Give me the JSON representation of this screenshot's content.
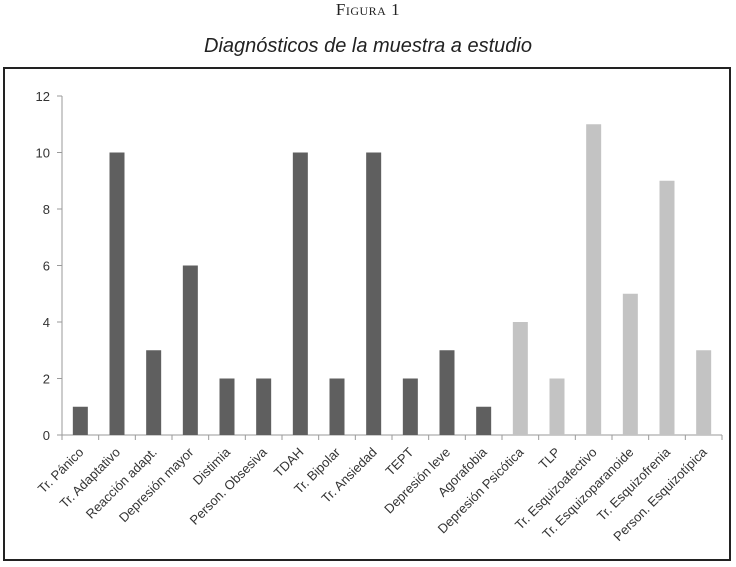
{
  "figure": {
    "label": "Figura 1",
    "title": "Diagnósticos de la muestra a estudio"
  },
  "chart_data": {
    "type": "bar",
    "title": "",
    "xlabel": "",
    "ylabel": "",
    "ylim": [
      0,
      12
    ],
    "yticks": [
      0,
      2,
      4,
      6,
      8,
      10,
      12
    ],
    "grid": false,
    "categories": [
      "Tr. Pánico",
      "Tr. Adaptativo",
      "Reacción adapt.",
      "Depresión mayor",
      "Distimia",
      "Person. Obsesiva",
      "TDAH",
      "Tr. Bipolar",
      "Tr. Ansiedad",
      "TEPT",
      "Depresión leve",
      "Agorafobia",
      "Depresión Psicótica",
      "TLP",
      "Tr. Esquizoafectivo",
      "Tr. Esquizoparanoide",
      "Tr. Esquizofrenia",
      "Person. Esquizotípica"
    ],
    "values": [
      1,
      10,
      3,
      6,
      2,
      2,
      10,
      2,
      10,
      2,
      3,
      1,
      4,
      2,
      11,
      5,
      9,
      3
    ],
    "bar_group": [
      "dark",
      "dark",
      "dark",
      "dark",
      "dark",
      "dark",
      "dark",
      "dark",
      "dark",
      "dark",
      "dark",
      "dark",
      "light",
      "light",
      "light",
      "light",
      "light",
      "light"
    ],
    "colors": {
      "dark": "#5f5f5f",
      "light": "#c3c3c3",
      "axis": "#9a9a9a"
    }
  }
}
